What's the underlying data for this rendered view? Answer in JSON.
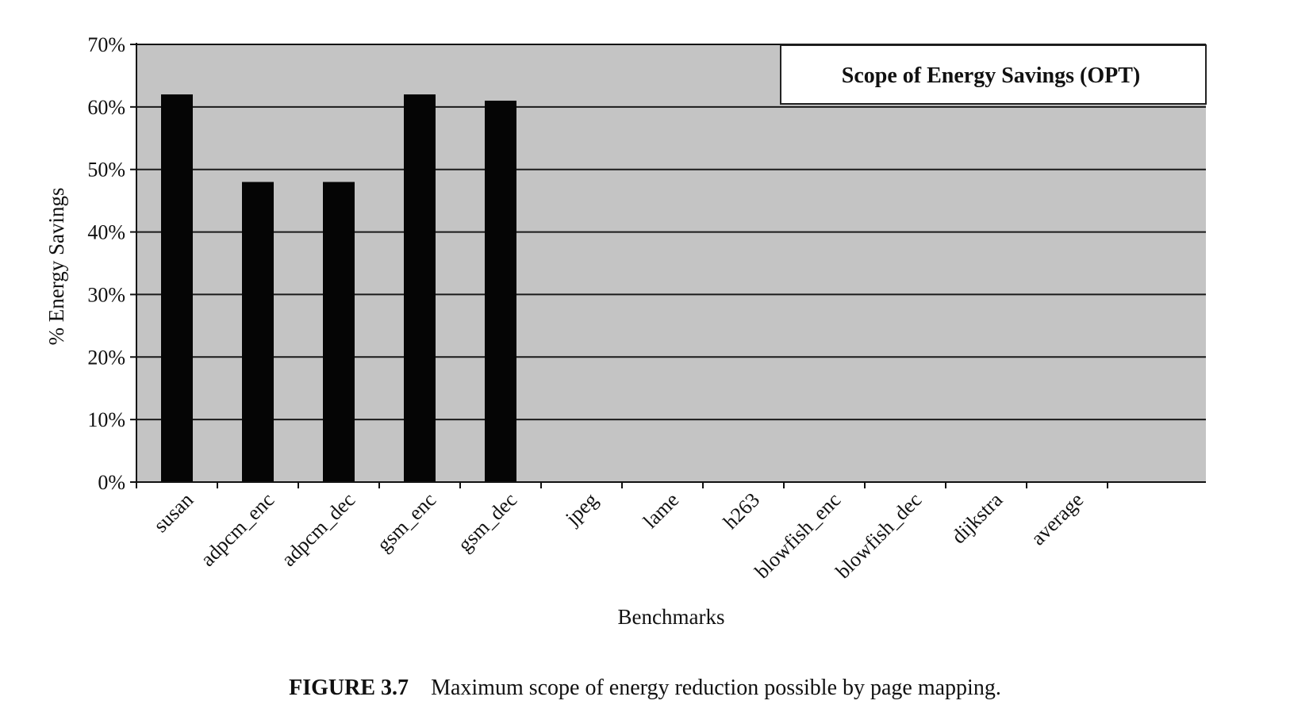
{
  "chart_data": {
    "type": "bar",
    "title": "",
    "legend": "Scope of Energy Savings (OPT)",
    "legend_position": "top-right",
    "xlabel": "Benchmarks",
    "ylabel": "% Energy Savings",
    "categories": [
      "susan",
      "adpcm_enc",
      "adpcm_dec",
      "gsm_enc",
      "gsm_dec",
      "jpeg",
      "lame",
      "h263",
      "blowfish_enc",
      "blowfish_dec",
      "dijkstra",
      "average"
    ],
    "values": [
      62,
      48,
      48,
      62,
      61,
      0,
      0,
      0,
      0,
      0,
      0,
      0
    ],
    "y_ticks": [
      "0%",
      "10%",
      "20%",
      "30%",
      "40%",
      "50%",
      "60%",
      "70%"
    ],
    "ylim": [
      0,
      70
    ],
    "grid": true,
    "colors": {
      "bar": "#050505",
      "plot_background": "#c4c4c4",
      "gridline": "#1a1a1a",
      "legend_background": "#ffffff"
    }
  },
  "caption": {
    "label": "FIGURE 3.7",
    "text": "Maximum scope of energy reduction possible by page mapping."
  }
}
